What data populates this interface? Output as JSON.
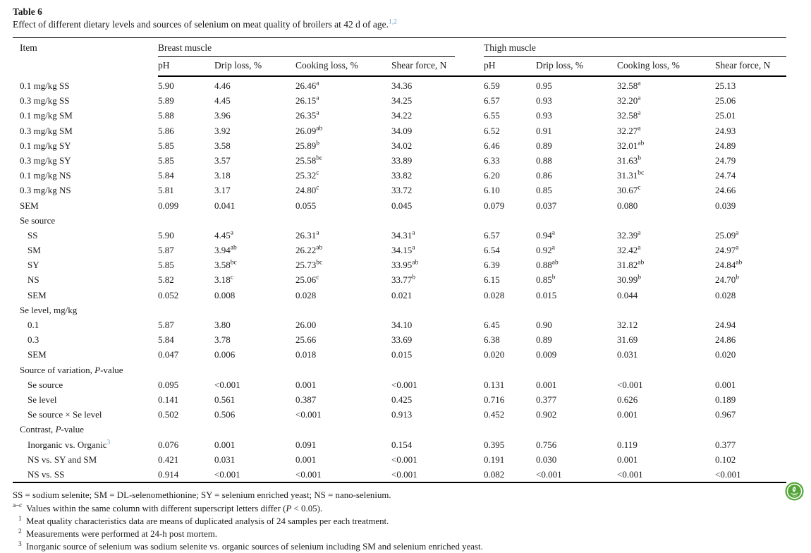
{
  "table": {
    "label": "Table 6",
    "caption": "Effect of different dietary levels and sources of selenium on meat quality of broilers at 42 d of age.",
    "caption_ref": "1,2",
    "item_header": "Item",
    "col_groups": {
      "breast": "Breast muscle",
      "thigh": "Thigh muscle"
    },
    "sub_headers": [
      "pH",
      "Drip loss, %",
      "Cooking loss, %",
      "Shear force, N"
    ],
    "rows": [
      {
        "label": "0.1 mg/kg SS",
        "indent": 0,
        "cells": [
          "5.90",
          "4.46",
          "26.46^a",
          "34.36",
          "6.59",
          "0.95",
          "32.58^a",
          "25.13"
        ]
      },
      {
        "label": "0.3 mg/kg SS",
        "indent": 0,
        "cells": [
          "5.89",
          "4.45",
          "26.15^a",
          "34.25",
          "6.57",
          "0.93",
          "32.20^a",
          "25.06"
        ]
      },
      {
        "label": "0.1 mg/kg SM",
        "indent": 0,
        "cells": [
          "5.88",
          "3.96",
          "26.35^a",
          "34.22",
          "6.55",
          "0.93",
          "32.58^a",
          "25.01"
        ]
      },
      {
        "label": "0.3 mg/kg SM",
        "indent": 0,
        "cells": [
          "5.86",
          "3.92",
          "26.09^ab",
          "34.09",
          "6.52",
          "0.91",
          "32.27^a",
          "24.93"
        ]
      },
      {
        "label": "0.1 mg/kg SY",
        "indent": 0,
        "cells": [
          "5.85",
          "3.58",
          "25.89^b",
          "34.02",
          "6.46",
          "0.89",
          "32.01^ab",
          "24.89"
        ]
      },
      {
        "label": "0.3 mg/kg SY",
        "indent": 0,
        "cells": [
          "5.85",
          "3.57",
          "25.58^bc",
          "33.89",
          "6.33",
          "0.88",
          "31.63^b",
          "24.79"
        ]
      },
      {
        "label": "0.1 mg/kg NS",
        "indent": 0,
        "cells": [
          "5.84",
          "3.18",
          "25.32^c",
          "33.82",
          "6.20",
          "0.86",
          "31.31^bc",
          "24.74"
        ]
      },
      {
        "label": "0.3 mg/kg NS",
        "indent": 0,
        "cells": [
          "5.81",
          "3.17",
          "24.80^c",
          "33.72",
          "6.10",
          "0.85",
          "30.67^c",
          "24.66"
        ]
      },
      {
        "label": "SEM",
        "indent": 0,
        "cells": [
          "0.099",
          "0.041",
          "0.055",
          "0.045",
          "0.079",
          "0.037",
          "0.080",
          "0.039"
        ]
      },
      {
        "label": "Se source",
        "indent": 0,
        "cells": []
      },
      {
        "label": "SS",
        "indent": 1,
        "cells": [
          "5.90",
          "4.45^a",
          "26.31^a",
          "34.31^a",
          "6.57",
          "0.94^a",
          "32.39^a",
          "25.09^a"
        ]
      },
      {
        "label": "SM",
        "indent": 1,
        "cells": [
          "5.87",
          "3.94^ab",
          "26.22^ab",
          "34.15^a",
          "6.54",
          "0.92^a",
          "32.42^a",
          "24.97^a"
        ]
      },
      {
        "label": "SY",
        "indent": 1,
        "cells": [
          "5.85",
          "3.58^bc",
          "25.73^bc",
          "33.95^ab",
          "6.39",
          "0.88^ab",
          "31.82^ab",
          "24.84^ab"
        ]
      },
      {
        "label": "NS",
        "indent": 1,
        "cells": [
          "5.82",
          "3.18^c",
          "25.06^c",
          "33.77^b",
          "6.15",
          "0.85^b",
          "30.99^b",
          "24.70^b"
        ]
      },
      {
        "label": "SEM",
        "indent": 1,
        "cells": [
          "0.052",
          "0.008",
          "0.028",
          "0.021",
          "0.028",
          "0.015",
          "0.044",
          "0.028"
        ]
      },
      {
        "label": "Se level, mg/kg",
        "indent": 0,
        "cells": []
      },
      {
        "label": "0.1",
        "indent": 1,
        "cells": [
          "5.87",
          "3.80",
          "26.00",
          "34.10",
          "6.45",
          "0.90",
          "32.12",
          "24.94"
        ]
      },
      {
        "label": "0.3",
        "indent": 1,
        "cells": [
          "5.84",
          "3.78",
          "25.66",
          "33.69",
          "6.38",
          "0.89",
          "31.69",
          "24.86"
        ]
      },
      {
        "label": "SEM",
        "indent": 1,
        "cells": [
          "0.047",
          "0.006",
          "0.018",
          "0.015",
          "0.020",
          "0.009",
          "0.031",
          "0.020"
        ]
      },
      {
        "label": "Source of variation, *P*-value",
        "indent": 0,
        "cells": []
      },
      {
        "label": "Se source",
        "indent": 1,
        "cells": [
          "0.095",
          "<0.001",
          "0.001",
          "<0.001",
          "0.131",
          "0.001",
          "<0.001",
          "0.001"
        ]
      },
      {
        "label": "Se level",
        "indent": 1,
        "cells": [
          "0.141",
          "0.561",
          "0.387",
          "0.425",
          "0.716",
          "0.377",
          "0.626",
          "0.189"
        ]
      },
      {
        "label": "Se source × Se level",
        "indent": 1,
        "cells": [
          "0.502",
          "0.506",
          "<0.001",
          "0.913",
          "0.452",
          "0.902",
          "0.001",
          "0.967"
        ]
      },
      {
        "label": "Contrast, *P*-value",
        "indent": 0,
        "cells": []
      },
      {
        "label": "Inorganic vs. Organic^3",
        "indent": 1,
        "cells": [
          "0.076",
          "0.001",
          "0.091",
          "0.154",
          "0.395",
          "0.756",
          "0.119",
          "0.377"
        ]
      },
      {
        "label": "NS vs. SY and SM",
        "indent": 1,
        "cells": [
          "0.421",
          "0.031",
          "0.001",
          "<0.001",
          "0.191",
          "0.030",
          "0.001",
          "0.102"
        ]
      },
      {
        "label": "NS vs. SS",
        "indent": 1,
        "cells": [
          "0.914",
          "<0.001",
          "<0.001",
          "<0.001",
          "0.082",
          "<0.001",
          "<0.001",
          "<0.001"
        ]
      }
    ],
    "footnotes": [
      {
        "marker": "",
        "text": "SS = sodium selenite; SM = DL-selenomethionine; SY = selenium enriched yeast; NS = nano-selenium."
      },
      {
        "marker": "a–c",
        "text": "Values within the same column with different superscript letters differ (*P* < 0.05)."
      },
      {
        "marker": "1",
        "text": "Meat quality characteristics data are means of duplicated analysis of 24 samples per each treatment."
      },
      {
        "marker": "2",
        "text": "Measurements were performed at 24-h post mortem."
      },
      {
        "marker": "3",
        "text": "Inorganic source of selenium was sodium selenite vs. organic sources of selenium including SM and selenium enriched yeast."
      }
    ]
  },
  "colors": {
    "footnote_ref_blue": "#6ea0cd",
    "logo_green": "#55a63a"
  },
  "icons": {
    "logo": "leaf-badge-icon"
  }
}
